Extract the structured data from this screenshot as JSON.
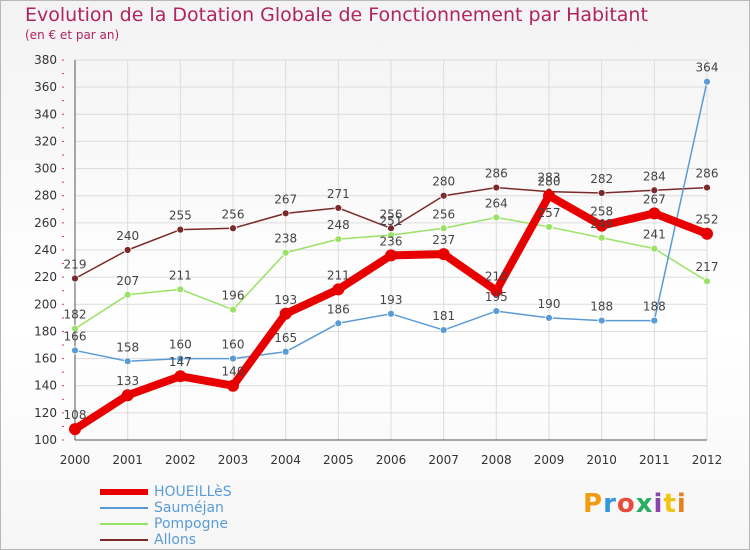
{
  "header": {
    "title": "Evolution de la Dotation Globale de Fonctionnement par Habitant",
    "subtitle": "(en € et par an)"
  },
  "logo": {
    "text": "Proxiti",
    "colors": [
      "#f39c12",
      "#3498db",
      "#e74c3c",
      "#27ae60",
      "#8e44ad",
      "#f1c40f",
      "#e67e22"
    ]
  },
  "chart_data": {
    "type": "line",
    "title": "Evolution de la Dotation Globale de Fonctionnement par Habitant",
    "subtitle": "(en € et par an)",
    "x": [
      2000,
      2001,
      2002,
      2003,
      2004,
      2005,
      2006,
      2007,
      2008,
      2009,
      2010,
      2011,
      2012
    ],
    "ylim": [
      100,
      380
    ],
    "yticks": [
      100,
      120,
      140,
      160,
      180,
      200,
      220,
      240,
      260,
      280,
      300,
      320,
      340,
      360,
      380
    ],
    "grid": true,
    "legend_position": "bottom-left",
    "series": [
      {
        "name": "HOUEILLèS",
        "color": "#e80000",
        "values": [
          108,
          133,
          147,
          140,
          193,
          211,
          236,
          237,
          210,
          280,
          258,
          267,
          252
        ]
      },
      {
        "name": "Sauméjan",
        "color": "#5b9bd5",
        "values": [
          166,
          158,
          160,
          160,
          165,
          186,
          193,
          181,
          195,
          190,
          188,
          188,
          364
        ]
      },
      {
        "name": "Pompogne",
        "color": "#99e266",
        "values": [
          182,
          207,
          211,
          196,
          238,
          248,
          251,
          256,
          264,
          257,
          249,
          241,
          217
        ]
      },
      {
        "name": "Allons",
        "color": "#7a2a2a",
        "values": [
          219,
          240,
          255,
          256,
          267,
          271,
          256,
          280,
          286,
          283,
          282,
          284,
          286
        ]
      }
    ]
  }
}
